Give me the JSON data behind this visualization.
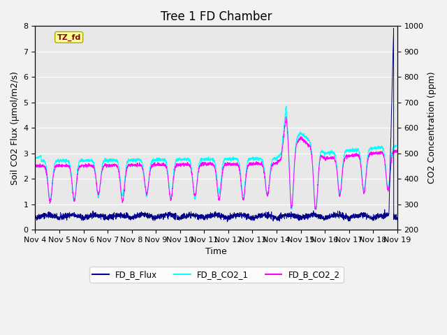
{
  "title": "Tree 1 FD Chamber",
  "xlabel": "Time",
  "ylabel_left": "Soil CO2 Flux (μmol/m2/s)",
  "ylabel_right": "CO2 Concentration (ppm)",
  "ylim_left": [
    0.0,
    8.0
  ],
  "ylim_right": [
    200,
    1000
  ],
  "yticks_left": [
    0.0,
    1.0,
    2.0,
    3.0,
    4.0,
    5.0,
    6.0,
    7.0,
    8.0
  ],
  "yticks_right": [
    200,
    300,
    400,
    500,
    600,
    700,
    800,
    900,
    1000
  ],
  "xtick_labels": [
    "Nov 4",
    "Nov 5",
    "Nov 6",
    "Nov 7",
    "Nov 8",
    "Nov 9",
    "Nov 10",
    "Nov 11",
    "Nov 12",
    "Nov 13",
    "Nov 14",
    "Nov 15",
    "Nov 16",
    "Nov 17",
    "Nov 18",
    "Nov 19"
  ],
  "annotation_text": "TZ_fd",
  "annotation_color": "#8B0000",
  "annotation_bg": "#FFFF99",
  "annotation_border": "#AAAA00",
  "color_flux": "#00008B",
  "color_co2_1": "#00FFFF",
  "color_co2_2": "#FF00FF",
  "legend_labels": [
    "FD_B_Flux",
    "FD_B_CO2_1",
    "FD_B_CO2_2"
  ],
  "background_color": "#E8E8E8",
  "grid_color": "#FFFFFF",
  "title_fontsize": 12,
  "label_fontsize": 9,
  "tick_fontsize": 8,
  "n_days": 15,
  "n_per_day": 200
}
